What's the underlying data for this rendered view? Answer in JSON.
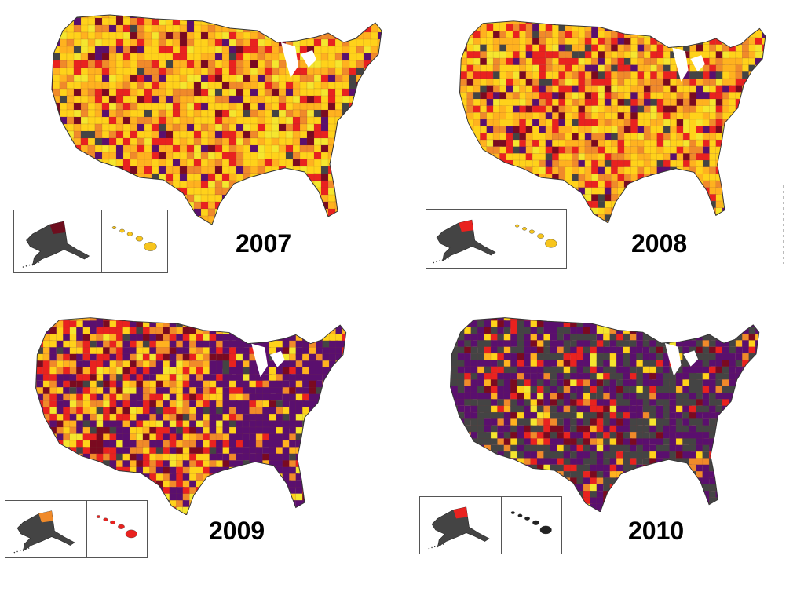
{
  "panels": [
    {
      "id": "2007",
      "year_label": "2007",
      "palette": [
        "#ffd21a",
        "#ffb21f",
        "#f08a2a",
        "#e9221f",
        "#f5e62e",
        "#7a0a20",
        "#5a0f6e",
        "#444444"
      ],
      "weights": [
        30,
        20,
        14,
        12,
        8,
        6,
        6,
        4
      ],
      "alaska": [
        "#444444",
        "#6e0e1e"
      ],
      "hawaii": "#f7c51d"
    },
    {
      "id": "2008",
      "year_label": "2008",
      "palette": [
        "#ffd21a",
        "#ffb21f",
        "#f08a2a",
        "#e9221f",
        "#f5e62e",
        "#7a0a20",
        "#5a0f6e",
        "#444444"
      ],
      "weights": [
        28,
        20,
        14,
        14,
        8,
        6,
        6,
        4
      ],
      "alaska": [
        "#444444",
        "#e9221f"
      ],
      "hawaii": "#f7c51d"
    },
    {
      "id": "2009",
      "year_label": "2009",
      "palette": [
        "#ffd21a",
        "#ffb21f",
        "#f08a2a",
        "#e9221f",
        "#5a0f6e",
        "#7a0a20",
        "#444444",
        "#f5e62e"
      ],
      "weights": [
        14,
        12,
        14,
        18,
        22,
        8,
        6,
        6
      ],
      "alaska": [
        "#444444",
        "#f08a2a"
      ],
      "hawaii": "#e9221f"
    },
    {
      "id": "2010",
      "year_label": "2010",
      "palette": [
        "#444444",
        "#5a0f6e",
        "#e9221f",
        "#7a0a20",
        "#f08a2a",
        "#ffd21a",
        "#ffb21f",
        "#f5e62e"
      ],
      "weights": [
        30,
        32,
        12,
        8,
        6,
        5,
        4,
        3
      ],
      "alaska": [
        "#444444",
        "#e9221f"
      ],
      "hawaii": "#222222"
    }
  ]
}
